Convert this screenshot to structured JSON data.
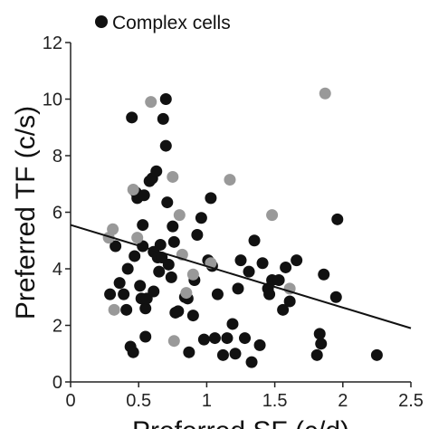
{
  "chart_data": {
    "type": "scatter",
    "xlabel": "Preferred SF (c/d)",
    "ylabel": "Preferred TF (c/s)",
    "xlim": [
      0,
      2.5
    ],
    "ylim": [
      0,
      12
    ],
    "xticks": [
      "0",
      "0.5",
      "1",
      "1.5",
      "2",
      "2.5"
    ],
    "yticks": [
      "0",
      "2",
      "4",
      "6",
      "8",
      "10",
      "12"
    ],
    "legend_position": "top-left",
    "series": [
      {
        "name": "Complex cells",
        "color": "#111111",
        "points": [
          [
            0.29,
            3.1
          ],
          [
            0.33,
            4.8
          ],
          [
            0.36,
            3.5
          ],
          [
            0.39,
            3.1
          ],
          [
            0.41,
            2.55
          ],
          [
            0.42,
            4.0
          ],
          [
            0.44,
            1.25
          ],
          [
            0.45,
            9.35
          ],
          [
            0.46,
            1.05
          ],
          [
            0.47,
            4.45
          ],
          [
            0.48,
            6.7
          ],
          [
            0.49,
            6.5
          ],
          [
            0.51,
            3.4
          ],
          [
            0.52,
            2.95
          ],
          [
            0.53,
            4.8
          ],
          [
            0.53,
            5.55
          ],
          [
            0.54,
            6.6
          ],
          [
            0.55,
            2.6
          ],
          [
            0.55,
            1.6
          ],
          [
            0.56,
            2.95
          ],
          [
            0.58,
            7.1
          ],
          [
            0.6,
            7.2
          ],
          [
            0.61,
            3.2
          ],
          [
            0.61,
            4.6
          ],
          [
            0.63,
            7.45
          ],
          [
            0.64,
            4.4
          ],
          [
            0.65,
            3.9
          ],
          [
            0.66,
            4.85
          ],
          [
            0.67,
            4.4
          ],
          [
            0.68,
            9.3
          ],
          [
            0.7,
            10.0
          ],
          [
            0.7,
            8.35
          ],
          [
            0.71,
            6.35
          ],
          [
            0.72,
            4.15
          ],
          [
            0.74,
            3.7
          ],
          [
            0.75,
            5.5
          ],
          [
            0.76,
            4.95
          ],
          [
            0.77,
            2.45
          ],
          [
            0.79,
            2.5
          ],
          [
            0.84,
            3.0
          ],
          [
            0.86,
            2.95
          ],
          [
            0.87,
            1.05
          ],
          [
            0.9,
            2.35
          ],
          [
            0.91,
            3.6
          ],
          [
            0.93,
            5.2
          ],
          [
            0.96,
            5.8
          ],
          [
            0.98,
            1.5
          ],
          [
            1.01,
            4.3
          ],
          [
            1.03,
            6.5
          ],
          [
            1.04,
            4.1
          ],
          [
            1.06,
            1.55
          ],
          [
            1.08,
            3.1
          ],
          [
            1.12,
            0.95
          ],
          [
            1.15,
            1.55
          ],
          [
            1.19,
            2.05
          ],
          [
            1.21,
            1.0
          ],
          [
            1.23,
            3.3
          ],
          [
            1.25,
            4.3
          ],
          [
            1.28,
            1.55
          ],
          [
            1.31,
            3.9
          ],
          [
            1.33,
            0.7
          ],
          [
            1.35,
            5.0
          ],
          [
            1.39,
            1.3
          ],
          [
            1.41,
            4.2
          ],
          [
            1.45,
            3.3
          ],
          [
            1.46,
            3.1
          ],
          [
            1.48,
            3.6
          ],
          [
            1.53,
            3.6
          ],
          [
            1.56,
            2.55
          ],
          [
            1.58,
            4.05
          ],
          [
            1.61,
            2.85
          ],
          [
            1.66,
            4.3
          ],
          [
            1.81,
            0.95
          ],
          [
            1.83,
            1.7
          ],
          [
            1.84,
            1.35
          ],
          [
            1.86,
            3.8
          ],
          [
            1.95,
            3.0
          ],
          [
            1.96,
            5.75
          ],
          [
            2.25,
            0.95
          ]
        ]
      },
      {
        "name": "",
        "color": "#999999",
        "points": [
          [
            0.28,
            5.1
          ],
          [
            0.31,
            5.4
          ],
          [
            0.32,
            2.55
          ],
          [
            0.46,
            6.8
          ],
          [
            0.49,
            5.1
          ],
          [
            0.59,
            9.9
          ],
          [
            0.75,
            7.25
          ],
          [
            0.76,
            1.45
          ],
          [
            0.8,
            5.9
          ],
          [
            0.82,
            4.5
          ],
          [
            0.85,
            3.15
          ],
          [
            0.9,
            3.8
          ],
          [
            1.03,
            4.2
          ],
          [
            1.17,
            7.15
          ],
          [
            1.48,
            5.9
          ],
          [
            1.61,
            3.3
          ],
          [
            1.87,
            10.2
          ]
        ]
      }
    ],
    "trendline": {
      "x": [
        0,
        2.5
      ],
      "y": [
        5.55,
        1.9
      ]
    }
  },
  "legend": {
    "label": "Complex cells"
  }
}
